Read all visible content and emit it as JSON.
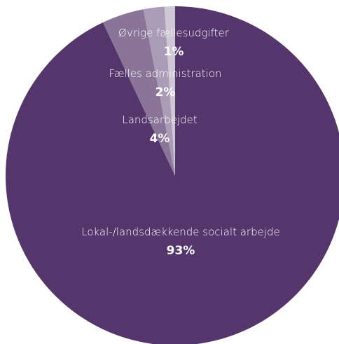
{
  "chart_data": {
    "type": "pie",
    "title": "",
    "slices": [
      {
        "label": "Lokal-/landsdækkende socialt arbejde",
        "value": 93,
        "value_label": "93%",
        "color": "#54366c"
      },
      {
        "label": "Landsarbejdet",
        "value": 4,
        "value_label": "4%",
        "color": "#8a7599"
      },
      {
        "label": "Fælles administration",
        "value": 2,
        "value_label": "2%",
        "color": "#aa9cb6"
      },
      {
        "label": "Øvrige fællesudgifter",
        "value": 1,
        "value_label": "1%",
        "color": "#cfc6d6"
      }
    ],
    "start_angle": "12 o'clock",
    "direction": "clockwise",
    "legend": "none",
    "labels": "inside slices"
  }
}
